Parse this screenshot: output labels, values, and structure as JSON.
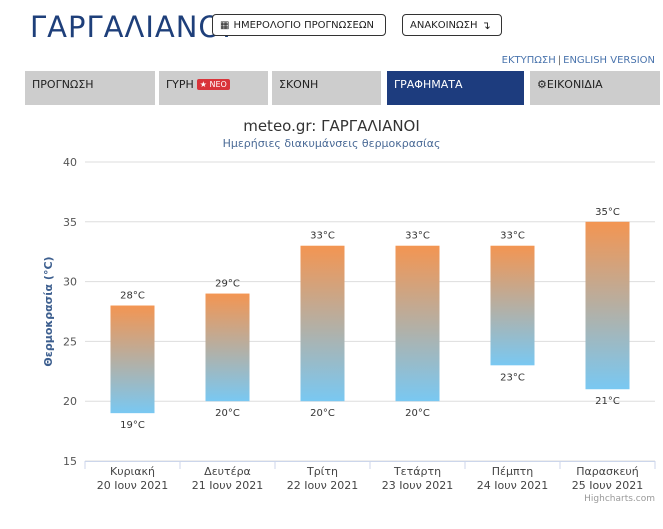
{
  "header": {
    "title": "ΓΑΡΓΑΛΙΑΝΟΙ",
    "calendar_button": "ΗΜΕΡΟΛΟΓΙΟ ΠΡΟΓΝΩΣΕΩΝ",
    "announcement_button": "ΑΝΑΚΟΙΝΩΣΗ"
  },
  "links": {
    "print": "ΕΚΤΥΠΩΣΗ",
    "separator": "|",
    "english": "ENGLISH VERSION"
  },
  "tabs": [
    {
      "label": "ΠΡΟΓΝΩΣΗ"
    },
    {
      "label": "ΓΥΡΗ",
      "badge": "ΝΕΟ"
    },
    {
      "label": "ΣΚΟΝΗ"
    },
    {
      "label": "ΓΡΑΦΗΜΑΤΑ",
      "active": true
    },
    {
      "label": "ΕΙΚΟΝΙΔΙΑ"
    }
  ],
  "chart_data": {
    "type": "bar",
    "subtype": "columnrange",
    "title": "meteo.gr: ΓΑΡΓΑΛΙΑΝΟΙ",
    "subtitle": "Ημερήσιες διακυμάνσεις θερμοκρασίας",
    "xlabel": "",
    "ylabel": "Θερμοκρασία (°C)",
    "ylim": [
      15,
      40
    ],
    "yticks": [
      15,
      20,
      25,
      30,
      35,
      40
    ],
    "grid": true,
    "categories": [
      {
        "day": "Κυριακή",
        "date": "20 Ιουν 2021"
      },
      {
        "day": "Δευτέρα",
        "date": "21 Ιουν 2021"
      },
      {
        "day": "Τρίτη",
        "date": "22 Ιουν 2021"
      },
      {
        "day": "Τετάρτη",
        "date": "23 Ιουν 2021"
      },
      {
        "day": "Πέμπτη",
        "date": "24 Ιουν 2021"
      },
      {
        "day": "Παρασκευή",
        "date": "25 Ιουν 2021"
      }
    ],
    "low": [
      19,
      20,
      20,
      20,
      23,
      21
    ],
    "high": [
      28,
      29,
      33,
      33,
      33,
      35
    ],
    "unit": "°C",
    "colors": {
      "top": "#f39552",
      "bottom": "#79c8f2"
    }
  },
  "credits": "Highcharts.com"
}
